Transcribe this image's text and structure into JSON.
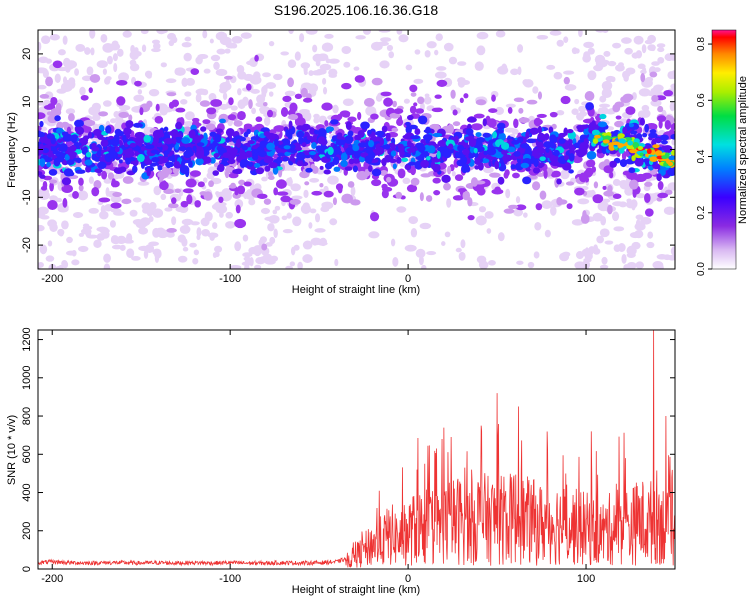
{
  "title": "S196.2025.106.16.36.G18",
  "colors": {
    "snr_line": "#ee3333",
    "spectrogram_low": "#e8d4f7",
    "spectrogram_high": "#ff0000"
  },
  "chart_data": [
    {
      "type": "heatmap",
      "xlabel": "Height of straight line (km)",
      "ylabel": "Frequency (Hz)",
      "xlim": [
        -208,
        150
      ],
      "ylim": [
        -25,
        25
      ],
      "xticks": [
        "-200",
        "-100",
        "0",
        "100"
      ],
      "xtick_values": [
        -200,
        -100,
        0,
        100
      ],
      "yticks": [
        "-20",
        "-10",
        "0",
        "10",
        "20"
      ],
      "ytick_values": [
        -20,
        -10,
        0,
        10,
        20
      ],
      "grid": false,
      "colormap": "rainbow (purple to red)",
      "colorbar": {
        "label": "Normalized spectral amplitude",
        "range": [
          0,
          0.85
        ],
        "ticks": [
          "0.0",
          "0.2",
          "0.4",
          "0.6",
          "0.8"
        ],
        "tick_values": [
          0.0,
          0.2,
          0.4,
          0.6,
          0.8
        ]
      },
      "features": [
        {
          "description": "dense band of energy",
          "x_range": [
            -208,
            150
          ],
          "frequency_center": 0,
          "frequency_halfwidth": 4
        },
        {
          "description": "highest amplitude patch",
          "x_range": [
            105,
            150
          ],
          "frequency_center": 2,
          "amplitude_peak": 0.8
        }
      ]
    },
    {
      "type": "line",
      "xlabel": "Height of straight line (km)",
      "ylabel": "SNR (10 * v/v)",
      "xlim": [
        -208,
        150
      ],
      "ylim": [
        0,
        1250
      ],
      "xticks": [
        "-200",
        "-100",
        "0",
        "100"
      ],
      "xtick_values": [
        -200,
        -100,
        0,
        100
      ],
      "yticks": [
        "0",
        "200",
        "400",
        "600",
        "800",
        "1000",
        "1200"
      ],
      "ytick_values": [
        0,
        200,
        400,
        600,
        800,
        1000,
        1200
      ],
      "grid": false,
      "series": [
        {
          "x": [
            -208,
            -200,
            -190,
            -180,
            -170,
            -160,
            -150,
            -140,
            -130,
            -120,
            -110,
            -100,
            -90,
            -80,
            -70,
            -60,
            -50,
            -40,
            -35,
            -30,
            -25,
            -20,
            -15,
            -10,
            -5,
            0,
            5,
            10,
            15,
            20,
            25,
            30,
            35,
            40,
            45,
            50,
            55,
            60,
            65,
            70,
            75,
            80,
            85,
            90,
            95,
            100,
            105,
            110,
            115,
            120,
            125,
            130,
            135,
            140,
            145,
            150
          ],
          "values": [
            30,
            35,
            30,
            28,
            30,
            30,
            28,
            30,
            28,
            30,
            28,
            30,
            28,
            28,
            30,
            28,
            30,
            35,
            50,
            90,
            130,
            180,
            200,
            250,
            220,
            260,
            300,
            310,
            280,
            330,
            340,
            360,
            320,
            380,
            350,
            360,
            340,
            380,
            350,
            340,
            320,
            330,
            330,
            310,
            300,
            290,
            270,
            260,
            300,
            330,
            300,
            350,
            320,
            380,
            300,
            220
          ],
          "peaks": [
            {
              "x": 5,
              "y": 520
            },
            {
              "x": 19,
              "y": 680
            },
            {
              "x": 50,
              "y": 920
            },
            {
              "x": 62,
              "y": 850
            },
            {
              "x": 103,
              "y": 720
            },
            {
              "x": 138,
              "y": 1250
            },
            {
              "x": 145,
              "y": 800
            }
          ]
        }
      ]
    }
  ]
}
